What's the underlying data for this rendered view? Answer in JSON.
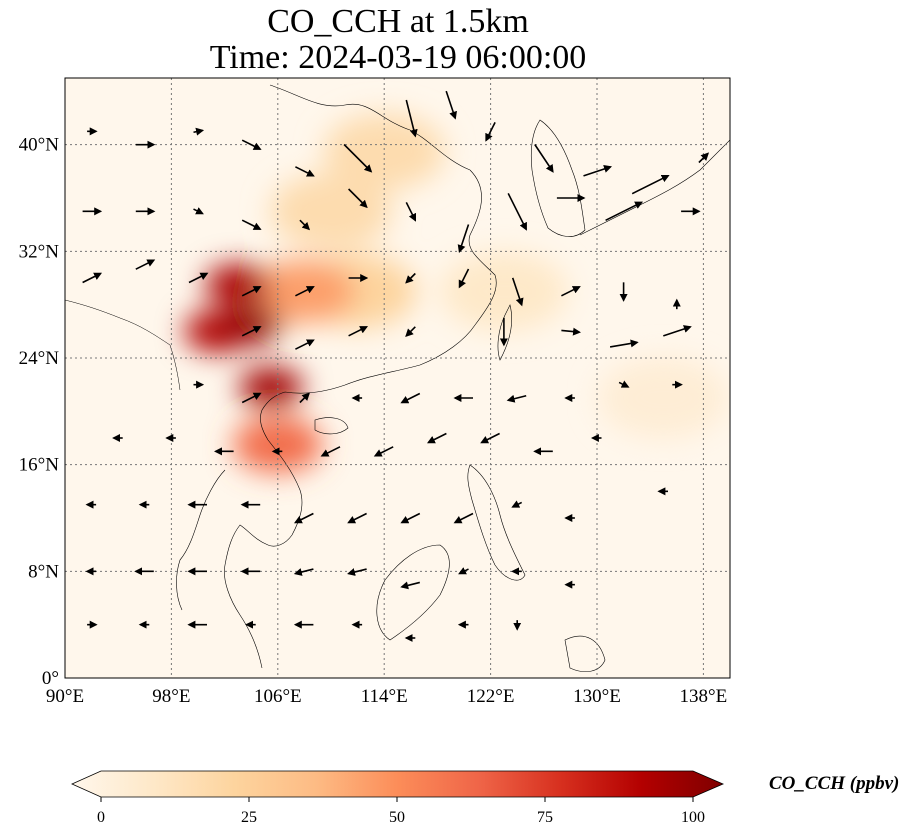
{
  "title": {
    "line1": "CO_CCH at 1.5km",
    "line2": "Time: 2024-03-19 06:00:00"
  },
  "map": {
    "extent": {
      "lon": [
        90,
        140
      ],
      "lat": [
        0,
        45
      ]
    },
    "lon_ticks": [
      90,
      98,
      106,
      114,
      122,
      130,
      138
    ],
    "lat_ticks": [
      0,
      8,
      16,
      24,
      32,
      40
    ],
    "lon_tick_labels": [
      "90°E",
      "98°E",
      "106°E",
      "114°E",
      "122°E",
      "130°E",
      "138°E"
    ],
    "lat_tick_labels": [
      "0°",
      "8°N",
      "16°N",
      "24°N",
      "32°N",
      "40°N"
    ],
    "gridlines": true,
    "background_color": "#fff7ec"
  },
  "plumes": [
    {
      "lon": 104,
      "lat": 26.5,
      "value": 95
    },
    {
      "lon": 103,
      "lat": 29.5,
      "value": 90
    },
    {
      "lon": 105.5,
      "lat": 21.8,
      "value": 92
    },
    {
      "lon": 101.5,
      "lat": 26,
      "value": 88
    },
    {
      "lon": 106,
      "lat": 17.5,
      "value": 60
    },
    {
      "lon": 108,
      "lat": 29,
      "value": 45
    },
    {
      "lon": 112,
      "lat": 29,
      "value": 25
    },
    {
      "lon": 110,
      "lat": 35,
      "value": 20
    },
    {
      "lon": 114,
      "lat": 39.5,
      "value": 20
    },
    {
      "lon": 123,
      "lat": 29,
      "value": 12
    },
    {
      "lon": 135,
      "lat": 21,
      "value": 8
    }
  ],
  "colorbar": {
    "label": "CO_CCH (ppbv)",
    "min": 0,
    "max": 100,
    "ticks": [
      0,
      25,
      50,
      75,
      100
    ],
    "tick_labels": [
      "0",
      "25",
      "50",
      "75",
      "100"
    ],
    "colormap": "OrRd",
    "extend": "both",
    "colors": [
      "#fff7ec",
      "#fee8c8",
      "#fdd49e",
      "#fdbb84",
      "#fc8d59",
      "#ef6548",
      "#d7301f",
      "#b30000",
      "#7f0000"
    ]
  },
  "wind_vectors": {
    "color": "#000000",
    "vectors": [
      {
        "lon": 92,
        "lat": 41,
        "u": 1,
        "v": 0
      },
      {
        "lon": 96,
        "lat": 40,
        "u": 2,
        "v": 0
      },
      {
        "lon": 100,
        "lat": 41,
        "u": 1,
        "v": 0.2
      },
      {
        "lon": 104,
        "lat": 40,
        "u": 2,
        "v": -1
      },
      {
        "lon": 108,
        "lat": 38,
        "u": 2,
        "v": -1
      },
      {
        "lon": 112,
        "lat": 39,
        "u": 3,
        "v": -3
      },
      {
        "lon": 116,
        "lat": 42,
        "u": 1,
        "v": -4
      },
      {
        "lon": 119,
        "lat": 43,
        "u": 1,
        "v": -3
      },
      {
        "lon": 122,
        "lat": 41,
        "u": -1,
        "v": -2
      },
      {
        "lon": 126,
        "lat": 39,
        "u": 2,
        "v": -3
      },
      {
        "lon": 130,
        "lat": 38,
        "u": 3,
        "v": 1
      },
      {
        "lon": 134,
        "lat": 37,
        "u": 4,
        "v": 2
      },
      {
        "lon": 138,
        "lat": 39,
        "u": 1,
        "v": 1
      },
      {
        "lon": 92,
        "lat": 35,
        "u": 2,
        "v": 0
      },
      {
        "lon": 96,
        "lat": 35,
        "u": 2,
        "v": 0
      },
      {
        "lon": 100,
        "lat": 35,
        "u": 1,
        "v": -0.5
      },
      {
        "lon": 104,
        "lat": 34,
        "u": 2,
        "v": -1
      },
      {
        "lon": 108,
        "lat": 34,
        "u": 1,
        "v": -1
      },
      {
        "lon": 112,
        "lat": 36,
        "u": 2,
        "v": -2
      },
      {
        "lon": 116,
        "lat": 35,
        "u": 1,
        "v": -2
      },
      {
        "lon": 120,
        "lat": 33,
        "u": -1,
        "v": -3
      },
      {
        "lon": 124,
        "lat": 35,
        "u": 2,
        "v": -4
      },
      {
        "lon": 128,
        "lat": 36,
        "u": 3,
        "v": 0
      },
      {
        "lon": 132,
        "lat": 35,
        "u": 4,
        "v": 2
      },
      {
        "lon": 137,
        "lat": 35,
        "u": 2,
        "v": 0
      },
      {
        "lon": 92,
        "lat": 30,
        "u": 2,
        "v": 1
      },
      {
        "lon": 96,
        "lat": 31,
        "u": 2,
        "v": 1
      },
      {
        "lon": 100,
        "lat": 30,
        "u": 2,
        "v": 1
      },
      {
        "lon": 104,
        "lat": 29,
        "u": 2,
        "v": 1
      },
      {
        "lon": 108,
        "lat": 29,
        "u": 2,
        "v": 1
      },
      {
        "lon": 112,
        "lat": 30,
        "u": 2,
        "v": 0
      },
      {
        "lon": 116,
        "lat": 30,
        "u": -1,
        "v": -1
      },
      {
        "lon": 120,
        "lat": 30,
        "u": -1,
        "v": -2
      },
      {
        "lon": 124,
        "lat": 29,
        "u": 1,
        "v": -3
      },
      {
        "lon": 128,
        "lat": 29,
        "u": 2,
        "v": 1
      },
      {
        "lon": 132,
        "lat": 29,
        "u": 0,
        "v": -2
      },
      {
        "lon": 136,
        "lat": 28,
        "u": 0,
        "v": 1
      },
      {
        "lon": 104,
        "lat": 26,
        "u": 2,
        "v": 1
      },
      {
        "lon": 108,
        "lat": 25,
        "u": 2,
        "v": 1
      },
      {
        "lon": 112,
        "lat": 26,
        "u": 2,
        "v": 1
      },
      {
        "lon": 116,
        "lat": 26,
        "u": -1,
        "v": -1
      },
      {
        "lon": 123,
        "lat": 26,
        "u": 0,
        "v": -3
      },
      {
        "lon": 128,
        "lat": 26,
        "u": 2,
        "v": -0.2
      },
      {
        "lon": 132,
        "lat": 25,
        "u": 3,
        "v": 0.5
      },
      {
        "lon": 136,
        "lat": 26,
        "u": 3,
        "v": 1
      },
      {
        "lon": 100,
        "lat": 22,
        "u": 1,
        "v": 0
      },
      {
        "lon": 104,
        "lat": 21,
        "u": 2,
        "v": 1
      },
      {
        "lon": 108,
        "lat": 21,
        "u": 1,
        "v": 1
      },
      {
        "lon": 112,
        "lat": 21,
        "u": -1,
        "v": 0
      },
      {
        "lon": 116,
        "lat": 21,
        "u": -2,
        "v": -1
      },
      {
        "lon": 120,
        "lat": 21,
        "u": -2,
        "v": 0
      },
      {
        "lon": 124,
        "lat": 21,
        "u": -2,
        "v": -0.5
      },
      {
        "lon": 128,
        "lat": 21,
        "u": -1,
        "v": 0
      },
      {
        "lon": 132,
        "lat": 22,
        "u": 1,
        "v": -0.5
      },
      {
        "lon": 136,
        "lat": 22,
        "u": 1,
        "v": 0
      },
      {
        "lon": 94,
        "lat": 18,
        "u": -1,
        "v": 0
      },
      {
        "lon": 98,
        "lat": 18,
        "u": -1,
        "v": 0
      },
      {
        "lon": 102,
        "lat": 17,
        "u": -2,
        "v": 0
      },
      {
        "lon": 106,
        "lat": 17,
        "u": -1,
        "v": 0
      },
      {
        "lon": 110,
        "lat": 17,
        "u": -2,
        "v": -1
      },
      {
        "lon": 114,
        "lat": 17,
        "u": -2,
        "v": -1
      },
      {
        "lon": 118,
        "lat": 18,
        "u": -2,
        "v": -1
      },
      {
        "lon": 122,
        "lat": 18,
        "u": -2,
        "v": -1
      },
      {
        "lon": 126,
        "lat": 17,
        "u": -2,
        "v": 0
      },
      {
        "lon": 130,
        "lat": 18,
        "u": -1,
        "v": 0
      },
      {
        "lon": 135,
        "lat": 14,
        "u": -1,
        "v": 0
      },
      {
        "lon": 92,
        "lat": 13,
        "u": -1,
        "v": 0
      },
      {
        "lon": 96,
        "lat": 13,
        "u": -1,
        "v": 0
      },
      {
        "lon": 100,
        "lat": 13,
        "u": -2,
        "v": 0
      },
      {
        "lon": 104,
        "lat": 13,
        "u": -2,
        "v": 0
      },
      {
        "lon": 108,
        "lat": 12,
        "u": -2,
        "v": -1
      },
      {
        "lon": 112,
        "lat": 12,
        "u": -2,
        "v": -1
      },
      {
        "lon": 116,
        "lat": 12,
        "u": -2,
        "v": -1
      },
      {
        "lon": 120,
        "lat": 12,
        "u": -2,
        "v": -1
      },
      {
        "lon": 124,
        "lat": 13,
        "u": -1,
        "v": -0.5
      },
      {
        "lon": 128,
        "lat": 12,
        "u": -1,
        "v": 0
      },
      {
        "lon": 92,
        "lat": 8,
        "u": -1,
        "v": 0
      },
      {
        "lon": 96,
        "lat": 8,
        "u": -2,
        "v": 0
      },
      {
        "lon": 100,
        "lat": 8,
        "u": -2,
        "v": 0
      },
      {
        "lon": 104,
        "lat": 8,
        "u": -2,
        "v": 0
      },
      {
        "lon": 108,
        "lat": 8,
        "u": -2,
        "v": -0.5
      },
      {
        "lon": 112,
        "lat": 8,
        "u": -2,
        "v": -0.5
      },
      {
        "lon": 116,
        "lat": 7,
        "u": -2,
        "v": -0.5
      },
      {
        "lon": 120,
        "lat": 8,
        "u": -1,
        "v": -0.5
      },
      {
        "lon": 124,
        "lat": 8,
        "u": -1,
        "v": 0
      },
      {
        "lon": 128,
        "lat": 7,
        "u": -1,
        "v": 0
      },
      {
        "lon": 92,
        "lat": 4,
        "u": 1,
        "v": 0
      },
      {
        "lon": 96,
        "lat": 4,
        "u": -1,
        "v": 0
      },
      {
        "lon": 100,
        "lat": 4,
        "u": -2,
        "v": 0
      },
      {
        "lon": 104,
        "lat": 4,
        "u": -1,
        "v": 0
      },
      {
        "lon": 108,
        "lat": 4,
        "u": -2,
        "v": 0
      },
      {
        "lon": 112,
        "lat": 4,
        "u": -1,
        "v": 0
      },
      {
        "lon": 116,
        "lat": 3,
        "u": -1,
        "v": 0
      },
      {
        "lon": 120,
        "lat": 4,
        "u": -1,
        "v": 0
      },
      {
        "lon": 124,
        "lat": 4,
        "u": 0,
        "v": -1
      }
    ]
  }
}
